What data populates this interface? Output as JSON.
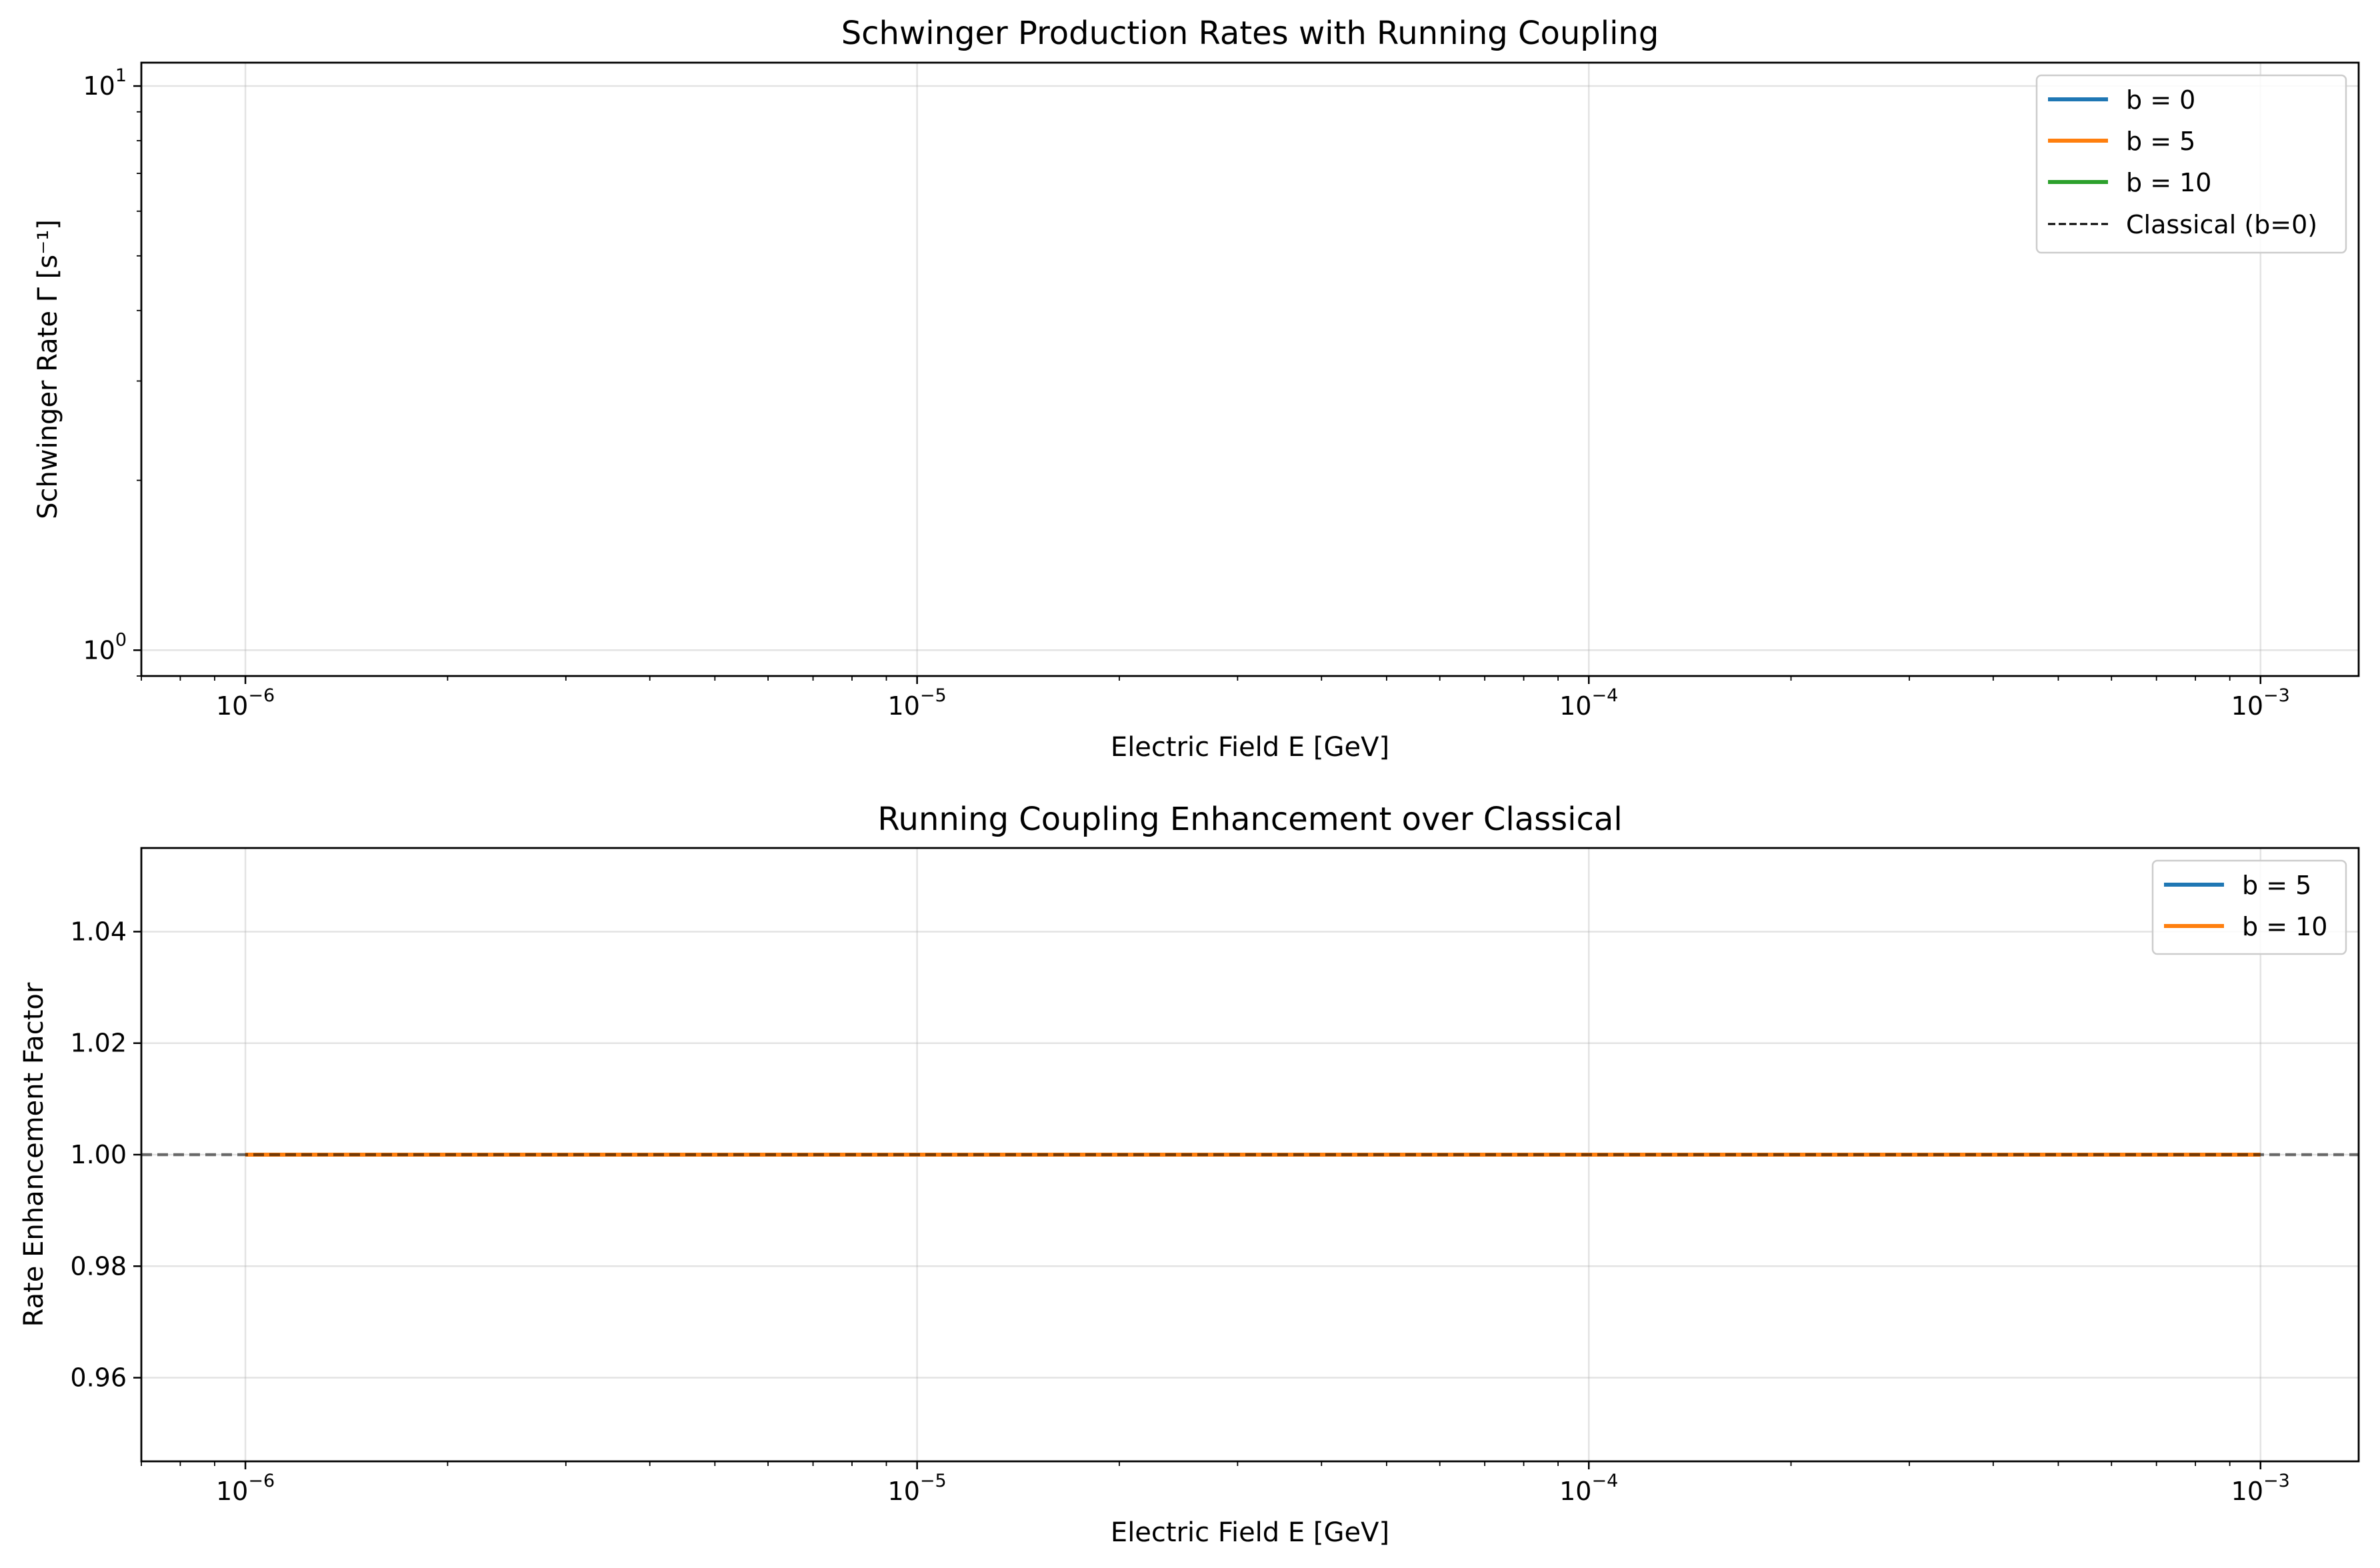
{
  "chart_data": [
    {
      "type": "line",
      "title": "Schwinger Production Rates with Running Coupling",
      "xlabel": "Electric Field E [GeV]",
      "ylabel": "Schwinger Rate Γ [s⁻¹]",
      "xscale": "log",
      "yscale": "log",
      "xlim": [
        7e-07,
        0.0014
      ],
      "ylim": [
        0.9,
        11
      ],
      "xticks": [
        {
          "value": 1e-06,
          "base": "10",
          "exp": "−6"
        },
        {
          "value": 1e-05,
          "base": "10",
          "exp": "−5"
        },
        {
          "value": 0.0001,
          "base": "10",
          "exp": "−4"
        },
        {
          "value": 0.001,
          "base": "10",
          "exp": "−3"
        }
      ],
      "yticks": [
        {
          "value": 1,
          "base": "10",
          "exp": "0"
        },
        {
          "value": 10,
          "base": "10",
          "exp": "1"
        }
      ],
      "grid": true,
      "legend_position": "top-right",
      "series": [
        {
          "name": "b = 0",
          "color": "#1f77b4",
          "style": "solid",
          "x": [],
          "y": []
        },
        {
          "name": "b = 5",
          "color": "#ff7f0e",
          "style": "solid",
          "x": [],
          "y": []
        },
        {
          "name": "b = 10",
          "color": "#2ca02c",
          "style": "solid",
          "x": [],
          "y": []
        },
        {
          "name": "Classical (b=0)",
          "color": "#000000",
          "style": "dashed",
          "x": [],
          "y": []
        }
      ]
    },
    {
      "type": "line",
      "title": "Running Coupling Enhancement over Classical",
      "xlabel": "Electric Field E [GeV]",
      "ylabel": "Rate Enhancement Factor",
      "xscale": "log",
      "yscale": "linear",
      "xlim": [
        7e-07,
        0.0014
      ],
      "ylim": [
        0.945,
        1.055
      ],
      "xticks": [
        {
          "value": 1e-06,
          "base": "10",
          "exp": "−6"
        },
        {
          "value": 1e-05,
          "base": "10",
          "exp": "−5"
        },
        {
          "value": 0.0001,
          "base": "10",
          "exp": "−4"
        },
        {
          "value": 0.001,
          "base": "10",
          "exp": "−3"
        }
      ],
      "yticks": [
        {
          "value": 0.96,
          "label": "0.96"
        },
        {
          "value": 0.98,
          "label": "0.98"
        },
        {
          "value": 1.0,
          "label": "1.00"
        },
        {
          "value": 1.02,
          "label": "1.02"
        },
        {
          "value": 1.04,
          "label": "1.04"
        }
      ],
      "grid": true,
      "legend_position": "top-right",
      "reference_line": {
        "y": 1.0,
        "color": "#000000",
        "opacity": 0.55,
        "style": "dashed"
      },
      "series": [
        {
          "name": "b = 5",
          "color": "#1f77b4",
          "style": "solid",
          "x": [
            1e-06,
            0.001
          ],
          "y": [
            1.0,
            1.0
          ]
        },
        {
          "name": "b = 10",
          "color": "#ff7f0e",
          "style": "solid",
          "x": [
            1e-06,
            0.001
          ],
          "y": [
            1.0,
            1.0
          ]
        }
      ]
    }
  ]
}
